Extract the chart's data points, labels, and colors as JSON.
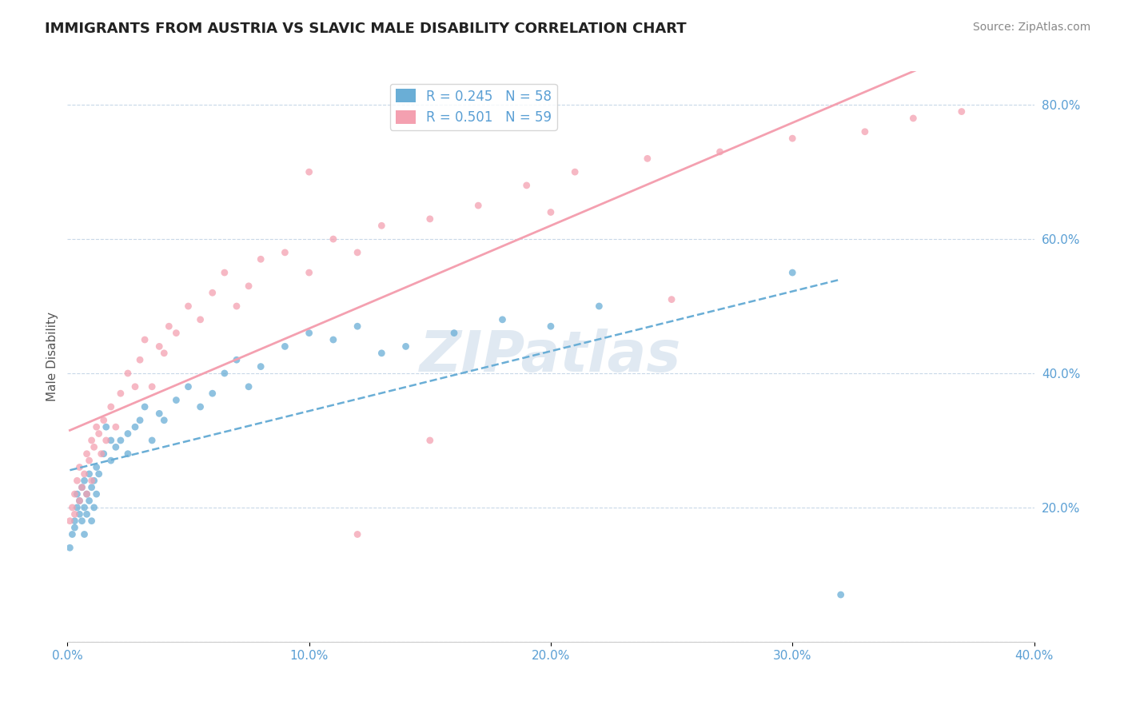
{
  "title": "IMMIGRANTS FROM AUSTRIA VS SLAVIC MALE DISABILITY CORRELATION CHART",
  "source": "Source: ZipAtlas.com",
  "ylabel": "Male Disability",
  "xlim": [
    0.0,
    0.4
  ],
  "ylim": [
    0.0,
    0.85
  ],
  "xticks": [
    0.0,
    0.1,
    0.2,
    0.3,
    0.4
  ],
  "yticks_right": [
    0.2,
    0.4,
    0.6,
    0.8
  ],
  "x_tick_labels": [
    "0.0%",
    "10.0%",
    "20.0%",
    "30.0%",
    "40.0%"
  ],
  "y_tick_labels_right": [
    "20.0%",
    "40.0%",
    "60.0%",
    "80.0%"
  ],
  "legend_r1": "R = 0.245",
  "legend_n1": "N = 58",
  "legend_r2": "R = 0.501",
  "legend_n2": "N = 59",
  "color_blue": "#6aaed6",
  "color_pink": "#f4a0b0",
  "color_text": "#5a9fd4",
  "color_grid": "#c8d8e8",
  "watermark": "ZIPatlas",
  "watermark_color": "#c8d8e8",
  "austria_x": [
    0.001,
    0.002,
    0.003,
    0.003,
    0.004,
    0.004,
    0.005,
    0.005,
    0.006,
    0.006,
    0.007,
    0.007,
    0.007,
    0.008,
    0.008,
    0.009,
    0.009,
    0.01,
    0.01,
    0.011,
    0.011,
    0.012,
    0.012,
    0.013,
    0.015,
    0.016,
    0.018,
    0.018,
    0.02,
    0.022,
    0.025,
    0.025,
    0.028,
    0.03,
    0.032,
    0.035,
    0.038,
    0.04,
    0.045,
    0.05,
    0.055,
    0.06,
    0.065,
    0.07,
    0.075,
    0.08,
    0.09,
    0.1,
    0.11,
    0.12,
    0.13,
    0.14,
    0.16,
    0.18,
    0.2,
    0.22,
    0.3,
    0.32
  ],
  "austria_y": [
    0.14,
    0.16,
    0.18,
    0.17,
    0.2,
    0.22,
    0.19,
    0.21,
    0.23,
    0.18,
    0.2,
    0.24,
    0.16,
    0.22,
    0.19,
    0.21,
    0.25,
    0.23,
    0.18,
    0.24,
    0.2,
    0.22,
    0.26,
    0.25,
    0.28,
    0.32,
    0.3,
    0.27,
    0.29,
    0.3,
    0.31,
    0.28,
    0.32,
    0.33,
    0.35,
    0.3,
    0.34,
    0.33,
    0.36,
    0.38,
    0.35,
    0.37,
    0.4,
    0.42,
    0.38,
    0.41,
    0.44,
    0.46,
    0.45,
    0.47,
    0.43,
    0.44,
    0.46,
    0.48,
    0.47,
    0.5,
    0.55,
    0.07
  ],
  "slavs_x": [
    0.001,
    0.002,
    0.003,
    0.003,
    0.004,
    0.005,
    0.005,
    0.006,
    0.007,
    0.008,
    0.008,
    0.009,
    0.01,
    0.01,
    0.011,
    0.012,
    0.013,
    0.014,
    0.015,
    0.016,
    0.018,
    0.02,
    0.022,
    0.025,
    0.028,
    0.03,
    0.032,
    0.035,
    0.038,
    0.04,
    0.042,
    0.045,
    0.05,
    0.055,
    0.06,
    0.065,
    0.07,
    0.075,
    0.08,
    0.09,
    0.1,
    0.11,
    0.12,
    0.13,
    0.15,
    0.17,
    0.19,
    0.21,
    0.24,
    0.27,
    0.3,
    0.33,
    0.35,
    0.37,
    0.2,
    0.25,
    0.1,
    0.12,
    0.15
  ],
  "slavs_y": [
    0.18,
    0.2,
    0.22,
    0.19,
    0.24,
    0.21,
    0.26,
    0.23,
    0.25,
    0.28,
    0.22,
    0.27,
    0.3,
    0.24,
    0.29,
    0.32,
    0.31,
    0.28,
    0.33,
    0.3,
    0.35,
    0.32,
    0.37,
    0.4,
    0.38,
    0.42,
    0.45,
    0.38,
    0.44,
    0.43,
    0.47,
    0.46,
    0.5,
    0.48,
    0.52,
    0.55,
    0.5,
    0.53,
    0.57,
    0.58,
    0.55,
    0.6,
    0.58,
    0.62,
    0.63,
    0.65,
    0.68,
    0.7,
    0.72,
    0.73,
    0.75,
    0.76,
    0.78,
    0.79,
    0.64,
    0.51,
    0.7,
    0.16,
    0.3
  ]
}
